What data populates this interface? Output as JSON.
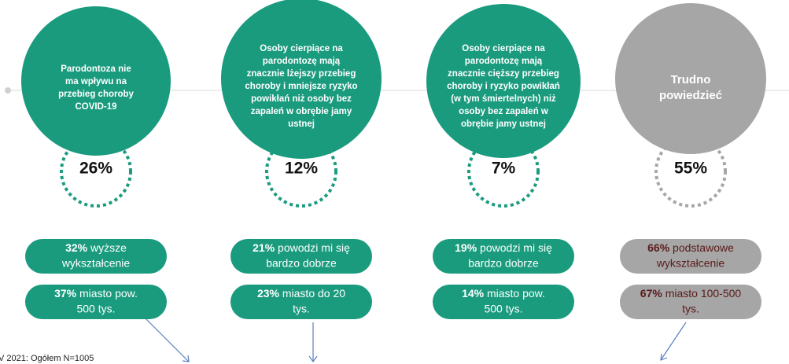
{
  "columns": [
    {
      "circle": [
        "Parodontoza nie",
        "ma wpływu na",
        "przebieg choroby",
        "COVID-19"
      ],
      "percent": "26%",
      "pills": [
        {
          "bold": "32%",
          "lines": [
            "wyższe",
            "wykształcenie"
          ]
        },
        {
          "bold": "37%",
          "lines": [
            "miasto pow.",
            "500 tys."
          ]
        }
      ]
    },
    {
      "circle": [
        "Osoby cierpiące na",
        "parodontozę mają",
        "znacznie lżejszy przebieg",
        "choroby i mniejsze ryzyko",
        "powikłań niż osoby bez",
        "zapaleń w obrębie jamy",
        "ustnej"
      ],
      "percent": "12%",
      "pills": [
        {
          "bold": "21%",
          "lines": [
            "powodzi mi się",
            "bardzo dobrze"
          ]
        },
        {
          "bold": "23%",
          "lines": [
            "miasto do 20",
            "tys."
          ]
        }
      ]
    },
    {
      "circle": [
        "Osoby cierpiące na",
        "parodontozę mają",
        "znacznie cięższy przebieg",
        "choroby i ryzyko powikłań",
        "(w tym śmiertelnych) niż",
        "osoby bez zapaleń w",
        "obrębie jamy ustnej"
      ],
      "percent": "7%",
      "pills": [
        {
          "bold": "19%",
          "lines": [
            "powodzi mi się",
            "bardzo dobrze"
          ]
        },
        {
          "bold": "14%",
          "lines": [
            "miasto pow.",
            "500 tys."
          ]
        }
      ]
    },
    {
      "circle": [
        "Trudno",
        "powiedzieć"
      ],
      "percent": "55%",
      "pills": [
        {
          "bold": "66%",
          "lines": [
            "podstawowe",
            "wykształcenie"
          ]
        },
        {
          "bold": "67%",
          "lines": [
            "miasto 100-500",
            "tys."
          ]
        }
      ]
    }
  ],
  "footnote": "V 2021: Ogółem N=1005"
}
